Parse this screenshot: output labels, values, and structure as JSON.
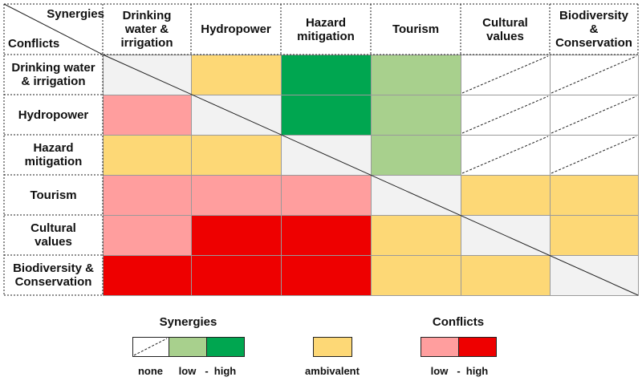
{
  "corner": {
    "synergies": "Synergies",
    "conflicts": "Conflicts"
  },
  "columns": [
    "Drinking\nwater &\nirrigation",
    "Hydropower",
    "Hazard\nmitigation",
    "Tourism",
    "Cultural\nvalues",
    "Biodiversity\n&\nConservation"
  ],
  "rows": [
    "Drinking water\n& irrigation",
    "Hydropower",
    "Hazard\nmitigation",
    "Tourism",
    "Cultural\nvalues",
    "Biodiversity &\nConservation"
  ],
  "cells": [
    [
      "#f2f2f2",
      "#fdd876",
      "#00a650",
      "#a8d08d",
      "#ffffff",
      "#ffffff"
    ],
    [
      "#ff9e9e",
      "#f2f2f2",
      "#00a650",
      "#a8d08d",
      "#ffffff",
      "#ffffff"
    ],
    [
      "#fdd876",
      "#fdd876",
      "#f2f2f2",
      "#a8d08d",
      "#ffffff",
      "#ffffff"
    ],
    [
      "#ff9e9e",
      "#ff9e9e",
      "#ff9e9e",
      "#f2f2f2",
      "#fdd876",
      "#fdd876"
    ],
    [
      "#ff9e9e",
      "#ee0000",
      "#ee0000",
      "#fdd876",
      "#f2f2f2",
      "#fdd876"
    ],
    [
      "#ee0000",
      "#ee0000",
      "#ee0000",
      "#fdd876",
      "#fdd876",
      "#f2f2f2"
    ]
  ],
  "legend": {
    "synergies": {
      "title": "Synergies",
      "items": [
        {
          "label": "none",
          "color": "#ffffff"
        },
        {
          "label": "low",
          "color": "#a8d08d"
        },
        {
          "label": "high",
          "color": "#00a650"
        }
      ],
      "separator": "-"
    },
    "ambivalent": {
      "label": "ambivalent",
      "color": "#fdd876"
    },
    "conflicts": {
      "title": "Conflicts",
      "items": [
        {
          "label": "low",
          "color": "#ff9e9e"
        },
        {
          "label": "high",
          "color": "#ee0000"
        }
      ],
      "separator": "-"
    }
  }
}
